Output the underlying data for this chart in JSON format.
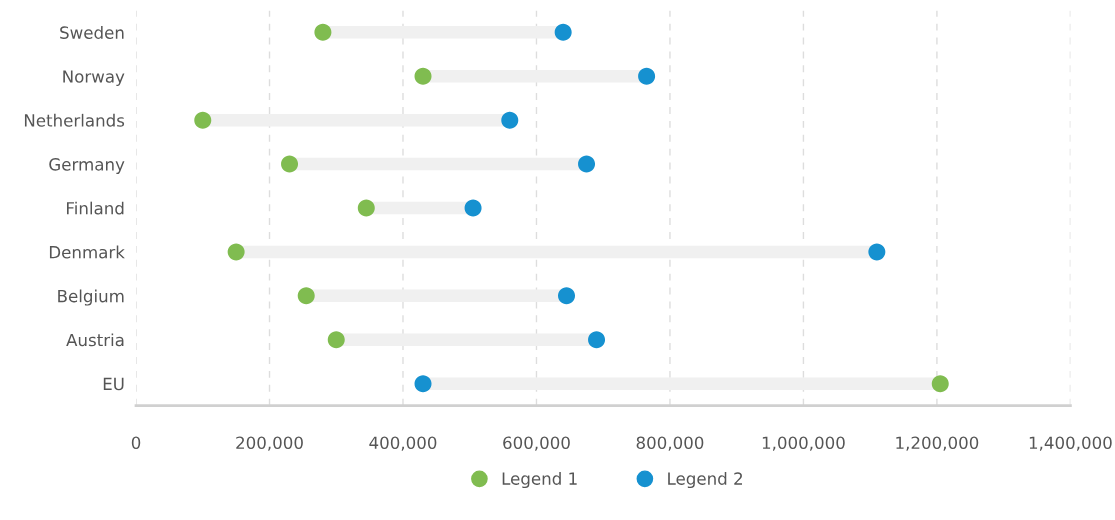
{
  "chart_data": {
    "type": "scatter",
    "orientation": "horizontal",
    "categories": [
      "Sweden",
      "Norway",
      "Netherlands",
      "Germany",
      "Finland",
      "Denmark",
      "Belgium",
      "Austria",
      "EU"
    ],
    "series": [
      {
        "name": "Legend 1",
        "color": "#80bc50",
        "values": [
          280000,
          430000,
          100000,
          230000,
          345000,
          150000,
          255000,
          300000,
          1205000
        ]
      },
      {
        "name": "Legend 2",
        "color": "#1691d0",
        "values": [
          640000,
          765000,
          560000,
          675000,
          505000,
          1110000,
          645000,
          690000,
          430000
        ]
      }
    ],
    "xlim": [
      0,
      1400000
    ],
    "xticks": [
      0,
      {
        "value": 200000,
        "label": "200,000"
      },
      {
        "value": 400000,
        "label": "400,000"
      },
      {
        "value": 600000,
        "label": "600,000"
      },
      {
        "value": 800000,
        "label": "800,000"
      },
      {
        "value": 1000000,
        "label": "1,000,000"
      },
      {
        "value": 1200000,
        "label": "1,200,000"
      },
      {
        "value": 1400000,
        "label": "1,400,000"
      }
    ],
    "grid": "x",
    "legend": "bottom",
    "marker": "circle"
  }
}
